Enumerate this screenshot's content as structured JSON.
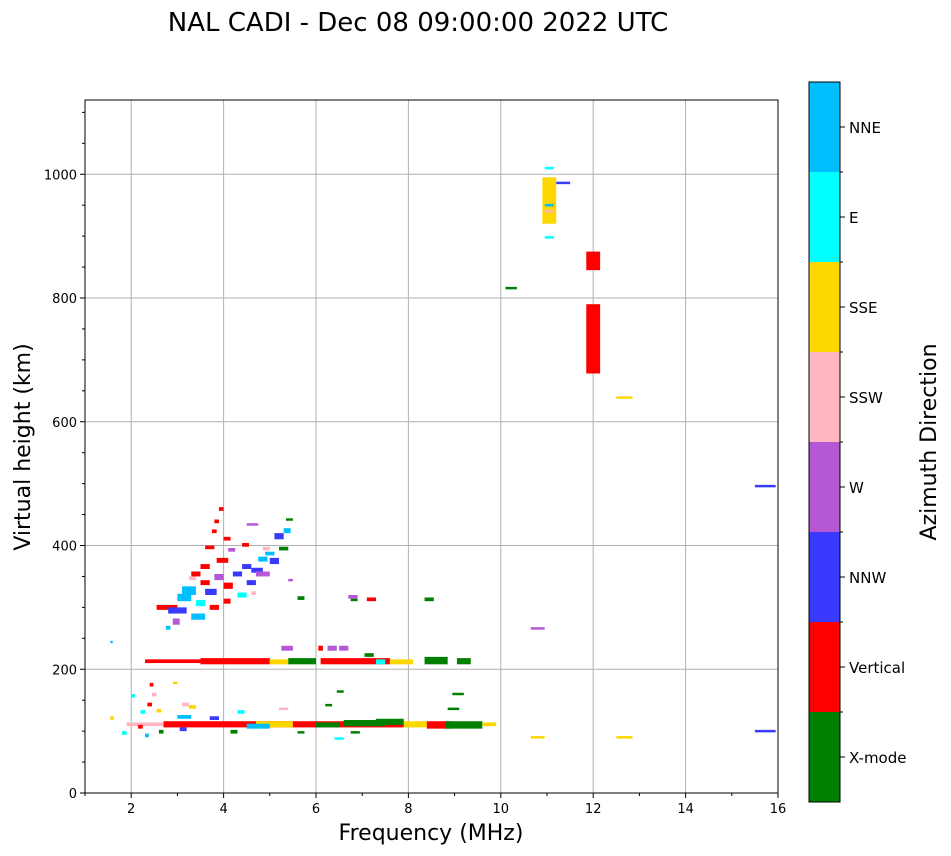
{
  "chart_data": {
    "type": "scatter",
    "title": "NAL CADI - Dec 08 09:00:00 2022 UTC",
    "xlabel": "Frequency (MHz)",
    "ylabel": "Virtual height (km)",
    "xlim": [
      1,
      16
    ],
    "ylim": [
      0,
      1120
    ],
    "xticks": [
      2,
      4,
      6,
      8,
      10,
      12,
      14,
      16
    ],
    "yticks": [
      0,
      200,
      400,
      600,
      800,
      1000
    ],
    "grid": true,
    "colorbar": {
      "title": "Azimuth Direction",
      "categories": [
        {
          "label": "X-mode",
          "color": "#008000"
        },
        {
          "label": "Vertical",
          "color": "#ff0000"
        },
        {
          "label": "NNW",
          "color": "#3a3aff"
        },
        {
          "label": "W",
          "color": "#b657d6"
        },
        {
          "label": "SSW",
          "color": "#ffb6c1"
        },
        {
          "label": "SSE",
          "color": "#ffd700"
        },
        {
          "label": "E",
          "color": "#00ffff"
        },
        {
          "label": "NNE",
          "color": "#00bfff"
        }
      ]
    },
    "points": [
      {
        "x0": 11.85,
        "x1": 12.15,
        "y0": 845,
        "y1": 875,
        "dir": "Vertical"
      },
      {
        "x0": 11.85,
        "x1": 12.15,
        "y0": 678,
        "y1": 790,
        "dir": "Vertical"
      },
      {
        "x0": 10.9,
        "x1": 11.2,
        "y0": 920,
        "y1": 995,
        "dir": "SSE"
      },
      {
        "x0": 10.95,
        "x1": 11.15,
        "y0": 1008,
        "y1": 1012,
        "dir": "E"
      },
      {
        "x0": 10.95,
        "x1": 11.15,
        "y0": 896,
        "y1": 900,
        "dir": "E"
      },
      {
        "x0": 10.95,
        "x1": 11.15,
        "y0": 948,
        "y1": 952,
        "dir": "NNE"
      },
      {
        "x0": 10.95,
        "x1": 11.15,
        "y0": 938,
        "y1": 942,
        "dir": "SSW"
      },
      {
        "x0": 11.2,
        "x1": 11.5,
        "y0": 984,
        "y1": 988,
        "dir": "NNW"
      },
      {
        "x0": 10.1,
        "x1": 10.35,
        "y0": 814,
        "y1": 818,
        "dir": "X-mode"
      },
      {
        "x0": 12.5,
        "x1": 12.85,
        "y0": 637,
        "y1": 641,
        "dir": "SSE"
      },
      {
        "x0": 15.5,
        "x1": 15.95,
        "y0": 494,
        "y1": 498,
        "dir": "NNW"
      },
      {
        "x0": 15.5,
        "x1": 15.95,
        "y0": 98,
        "y1": 102,
        "dir": "NNW"
      },
      {
        "x0": 10.65,
        "x1": 10.95,
        "y0": 264,
        "y1": 268,
        "dir": "W"
      },
      {
        "x0": 10.65,
        "x1": 10.95,
        "y0": 88,
        "y1": 92,
        "dir": "SSE"
      },
      {
        "x0": 12.5,
        "x1": 12.85,
        "y0": 88,
        "y1": 92,
        "dir": "SSE"
      },
      {
        "x0": 1.55,
        "x1": 1.6,
        "y0": 242,
        "y1": 246,
        "dir": "NNE"
      },
      {
        "x0": 2.3,
        "x1": 3.5,
        "y0": 210,
        "y1": 216,
        "dir": "Vertical"
      },
      {
        "x0": 3.5,
        "x1": 5.0,
        "y0": 208,
        "y1": 218,
        "dir": "Vertical"
      },
      {
        "x0": 5.0,
        "x1": 5.4,
        "y0": 208,
        "y1": 216,
        "dir": "SSE"
      },
      {
        "x0": 5.4,
        "x1": 6.0,
        "y0": 208,
        "y1": 218,
        "dir": "X-mode"
      },
      {
        "x0": 6.1,
        "x1": 7.6,
        "y0": 208,
        "y1": 218,
        "dir": "Vertical"
      },
      {
        "x0": 7.6,
        "x1": 8.1,
        "y0": 208,
        "y1": 216,
        "dir": "SSE"
      },
      {
        "x0": 7.3,
        "x1": 7.5,
        "y0": 208,
        "y1": 216,
        "dir": "E"
      },
      {
        "x0": 8.35,
        "x1": 8.85,
        "y0": 208,
        "y1": 220,
        "dir": "X-mode"
      },
      {
        "x0": 9.05,
        "x1": 9.35,
        "y0": 208,
        "y1": 218,
        "dir": "X-mode"
      },
      {
        "x0": 5.25,
        "x1": 5.5,
        "y0": 230,
        "y1": 238,
        "dir": "W"
      },
      {
        "x0": 6.05,
        "x1": 6.15,
        "y0": 230,
        "y1": 238,
        "dir": "Vertical"
      },
      {
        "x0": 6.25,
        "x1": 6.45,
        "y0": 230,
        "y1": 238,
        "dir": "W"
      },
      {
        "x0": 6.5,
        "x1": 6.7,
        "y0": 230,
        "y1": 238,
        "dir": "W"
      },
      {
        "x0": 7.05,
        "x1": 7.25,
        "y0": 220,
        "y1": 226,
        "dir": "X-mode"
      },
      {
        "x0": 2.7,
        "x1": 7.9,
        "y0": 106,
        "y1": 116,
        "dir": "Vertical"
      },
      {
        "x0": 1.9,
        "x1": 2.7,
        "y0": 108,
        "y1": 114,
        "dir": "SSW"
      },
      {
        "x0": 4.7,
        "x1": 5.5,
        "y0": 106,
        "y1": 116,
        "dir": "SSE"
      },
      {
        "x0": 4.5,
        "x1": 5.0,
        "y0": 104,
        "y1": 112,
        "dir": "NNE"
      },
      {
        "x0": 6.0,
        "x1": 6.5,
        "y0": 106,
        "y1": 114,
        "dir": "X-mode"
      },
      {
        "x0": 6.6,
        "x1": 7.5,
        "y0": 108,
        "y1": 118,
        "dir": "X-mode"
      },
      {
        "x0": 7.3,
        "x1": 7.9,
        "y0": 110,
        "y1": 120,
        "dir": "X-mode"
      },
      {
        "x0": 7.9,
        "x1": 8.4,
        "y0": 106,
        "y1": 116,
        "dir": "SSE"
      },
      {
        "x0": 8.4,
        "x1": 8.9,
        "y0": 104,
        "y1": 116,
        "dir": "Vertical"
      },
      {
        "x0": 8.8,
        "x1": 9.6,
        "y0": 104,
        "y1": 116,
        "dir": "X-mode"
      },
      {
        "x0": 9.6,
        "x1": 9.9,
        "y0": 108,
        "y1": 114,
        "dir": "SSE"
      },
      {
        "x0": 3.0,
        "x1": 3.3,
        "y0": 120,
        "y1": 126,
        "dir": "NNE"
      },
      {
        "x0": 3.7,
        "x1": 3.9,
        "y0": 118,
        "y1": 124,
        "dir": "NNW"
      },
      {
        "x0": 8.95,
        "x1": 9.2,
        "y0": 158,
        "y1": 162,
        "dir": "X-mode"
      },
      {
        "x0": 8.85,
        "x1": 9.1,
        "y0": 134,
        "y1": 138,
        "dir": "X-mode"
      },
      {
        "x0": 6.45,
        "x1": 6.6,
        "y0": 162,
        "y1": 166,
        "dir": "X-mode"
      },
      {
        "x0": 5.2,
        "x1": 5.4,
        "y0": 134,
        "y1": 138,
        "dir": "SSW"
      },
      {
        "x0": 6.2,
        "x1": 6.35,
        "y0": 140,
        "y1": 144,
        "dir": "X-mode"
      },
      {
        "x0": 6.4,
        "x1": 6.6,
        "y0": 86,
        "y1": 90,
        "dir": "E"
      },
      {
        "x0": 5.6,
        "x1": 5.75,
        "y0": 96,
        "y1": 100,
        "dir": "X-mode"
      },
      {
        "x0": 6.75,
        "x1": 6.95,
        "y0": 96,
        "y1": 100,
        "dir": "X-mode"
      },
      {
        "x0": 2.4,
        "x1": 2.48,
        "y0": 172,
        "y1": 178,
        "dir": "Vertical"
      },
      {
        "x0": 2.45,
        "x1": 2.55,
        "y0": 156,
        "y1": 162,
        "dir": "SSW"
      },
      {
        "x0": 2.35,
        "x1": 2.45,
        "y0": 140,
        "y1": 146,
        "dir": "Vertical"
      },
      {
        "x0": 2.0,
        "x1": 2.08,
        "y0": 154,
        "y1": 160,
        "dir": "E"
      },
      {
        "x0": 2.2,
        "x1": 2.3,
        "y0": 128,
        "y1": 134,
        "dir": "E"
      },
      {
        "x0": 2.55,
        "x1": 2.65,
        "y0": 130,
        "y1": 136,
        "dir": "SSE"
      },
      {
        "x0": 2.9,
        "x1": 3.0,
        "y0": 176,
        "y1": 180,
        "dir": "SSE"
      },
      {
        "x0": 3.25,
        "x1": 3.4,
        "y0": 136,
        "y1": 142,
        "dir": "SSE"
      },
      {
        "x0": 3.1,
        "x1": 3.25,
        "y0": 140,
        "y1": 146,
        "dir": "SSW"
      },
      {
        "x0": 1.8,
        "x1": 1.9,
        "y0": 94,
        "y1": 100,
        "dir": "E"
      },
      {
        "x0": 2.3,
        "x1": 2.38,
        "y0": 90,
        "y1": 96,
        "dir": "NNE"
      },
      {
        "x0": 1.55,
        "x1": 1.62,
        "y0": 118,
        "y1": 124,
        "dir": "SSE"
      },
      {
        "x0": 2.15,
        "x1": 2.25,
        "y0": 104,
        "y1": 110,
        "dir": "Vertical"
      },
      {
        "x0": 2.6,
        "x1": 2.7,
        "y0": 96,
        "y1": 102,
        "dir": "X-mode"
      },
      {
        "x0": 3.05,
        "x1": 3.2,
        "y0": 100,
        "y1": 106,
        "dir": "NNW"
      },
      {
        "x0": 4.3,
        "x1": 4.45,
        "y0": 128,
        "y1": 134,
        "dir": "E"
      },
      {
        "x0": 4.15,
        "x1": 4.3,
        "y0": 96,
        "y1": 102,
        "dir": "X-mode"
      },
      {
        "x0": 2.55,
        "x1": 3.0,
        "y0": 296,
        "y1": 304,
        "dir": "Vertical"
      },
      {
        "x0": 2.8,
        "x1": 3.2,
        "y0": 290,
        "y1": 300,
        "dir": "NNW"
      },
      {
        "x0": 3.0,
        "x1": 3.3,
        "y0": 310,
        "y1": 322,
        "dir": "NNE"
      },
      {
        "x0": 3.1,
        "x1": 3.4,
        "y0": 320,
        "y1": 334,
        "dir": "NNE"
      },
      {
        "x0": 3.3,
        "x1": 3.6,
        "y0": 280,
        "y1": 290,
        "dir": "NNE"
      },
      {
        "x0": 2.9,
        "x1": 3.05,
        "y0": 272,
        "y1": 282,
        "dir": "W"
      },
      {
        "x0": 3.4,
        "x1": 3.6,
        "y0": 302,
        "y1": 312,
        "dir": "E"
      },
      {
        "x0": 3.5,
        "x1": 3.7,
        "y0": 336,
        "y1": 344,
        "dir": "Vertical"
      },
      {
        "x0": 3.3,
        "x1": 3.5,
        "y0": 350,
        "y1": 358,
        "dir": "Vertical"
      },
      {
        "x0": 3.5,
        "x1": 3.7,
        "y0": 362,
        "y1": 370,
        "dir": "Vertical"
      },
      {
        "x0": 3.6,
        "x1": 3.85,
        "y0": 320,
        "y1": 330,
        "dir": "NNW"
      },
      {
        "x0": 3.7,
        "x1": 3.9,
        "y0": 296,
        "y1": 304,
        "dir": "Vertical"
      },
      {
        "x0": 3.8,
        "x1": 4.0,
        "y0": 344,
        "y1": 354,
        "dir": "W"
      },
      {
        "x0": 3.85,
        "x1": 4.1,
        "y0": 372,
        "y1": 380,
        "dir": "Vertical"
      },
      {
        "x0": 4.0,
        "x1": 4.2,
        "y0": 330,
        "y1": 340,
        "dir": "Vertical"
      },
      {
        "x0": 4.0,
        "x1": 4.15,
        "y0": 306,
        "y1": 314,
        "dir": "Vertical"
      },
      {
        "x0": 4.2,
        "x1": 4.4,
        "y0": 350,
        "y1": 358,
        "dir": "NNW"
      },
      {
        "x0": 4.3,
        "x1": 4.5,
        "y0": 316,
        "y1": 324,
        "dir": "E"
      },
      {
        "x0": 4.4,
        "x1": 4.6,
        "y0": 362,
        "y1": 370,
        "dir": "NNW"
      },
      {
        "x0": 4.5,
        "x1": 4.7,
        "y0": 336,
        "y1": 344,
        "dir": "NNW"
      },
      {
        "x0": 4.6,
        "x1": 4.85,
        "y0": 356,
        "y1": 364,
        "dir": "NNW"
      },
      {
        "x0": 4.75,
        "x1": 4.95,
        "y0": 374,
        "y1": 382,
        "dir": "NNE"
      },
      {
        "x0": 4.7,
        "x1": 5.0,
        "y0": 350,
        "y1": 358,
        "dir": "W"
      },
      {
        "x0": 5.0,
        "x1": 5.2,
        "y0": 370,
        "y1": 380,
        "dir": "NNW"
      },
      {
        "x0": 5.1,
        "x1": 5.3,
        "y0": 410,
        "y1": 420,
        "dir": "NNW"
      },
      {
        "x0": 5.3,
        "x1": 5.45,
        "y0": 420,
        "y1": 428,
        "dir": "NNE"
      },
      {
        "x0": 5.35,
        "x1": 5.5,
        "y0": 440,
        "y1": 444,
        "dir": "X-mode"
      },
      {
        "x0": 5.2,
        "x1": 5.4,
        "y0": 392,
        "y1": 398,
        "dir": "X-mode"
      },
      {
        "x0": 4.85,
        "x1": 5.0,
        "y0": 392,
        "y1": 398,
        "dir": "SSW"
      },
      {
        "x0": 4.9,
        "x1": 5.1,
        "y0": 384,
        "y1": 390,
        "dir": "NNE"
      },
      {
        "x0": 4.5,
        "x1": 4.75,
        "y0": 432,
        "y1": 436,
        "dir": "W"
      },
      {
        "x0": 4.0,
        "x1": 4.15,
        "y0": 408,
        "y1": 414,
        "dir": "Vertical"
      },
      {
        "x0": 3.9,
        "x1": 4.0,
        "y0": 456,
        "y1": 462,
        "dir": "Vertical"
      },
      {
        "x0": 3.8,
        "x1": 3.9,
        "y0": 436,
        "y1": 442,
        "dir": "Vertical"
      },
      {
        "x0": 3.75,
        "x1": 3.85,
        "y0": 420,
        "y1": 426,
        "dir": "Vertical"
      },
      {
        "x0": 3.6,
        "x1": 3.8,
        "y0": 394,
        "y1": 400,
        "dir": "Vertical"
      },
      {
        "x0": 4.1,
        "x1": 4.25,
        "y0": 390,
        "y1": 396,
        "dir": "W"
      },
      {
        "x0": 4.4,
        "x1": 4.55,
        "y0": 398,
        "y1": 404,
        "dir": "Vertical"
      },
      {
        "x0": 5.4,
        "x1": 5.5,
        "y0": 342,
        "y1": 346,
        "dir": "W"
      },
      {
        "x0": 2.75,
        "x1": 2.85,
        "y0": 264,
        "y1": 270,
        "dir": "NNE"
      },
      {
        "x0": 3.25,
        "x1": 3.4,
        "y0": 344,
        "y1": 350,
        "dir": "SSW"
      },
      {
        "x0": 4.6,
        "x1": 4.7,
        "y0": 320,
        "y1": 326,
        "dir": "SSW"
      },
      {
        "x0": 5.6,
        "x1": 5.75,
        "y0": 312,
        "y1": 318,
        "dir": "X-mode"
      },
      {
        "x0": 6.7,
        "x1": 6.9,
        "y0": 314,
        "y1": 320,
        "dir": "W"
      },
      {
        "x0": 6.75,
        "x1": 6.9,
        "y0": 310,
        "y1": 314,
        "dir": "X-mode"
      },
      {
        "x0": 7.1,
        "x1": 7.3,
        "y0": 310,
        "y1": 316,
        "dir": "Vertical"
      },
      {
        "x0": 8.35,
        "x1": 8.55,
        "y0": 310,
        "y1": 316,
        "dir": "X-mode"
      }
    ]
  }
}
